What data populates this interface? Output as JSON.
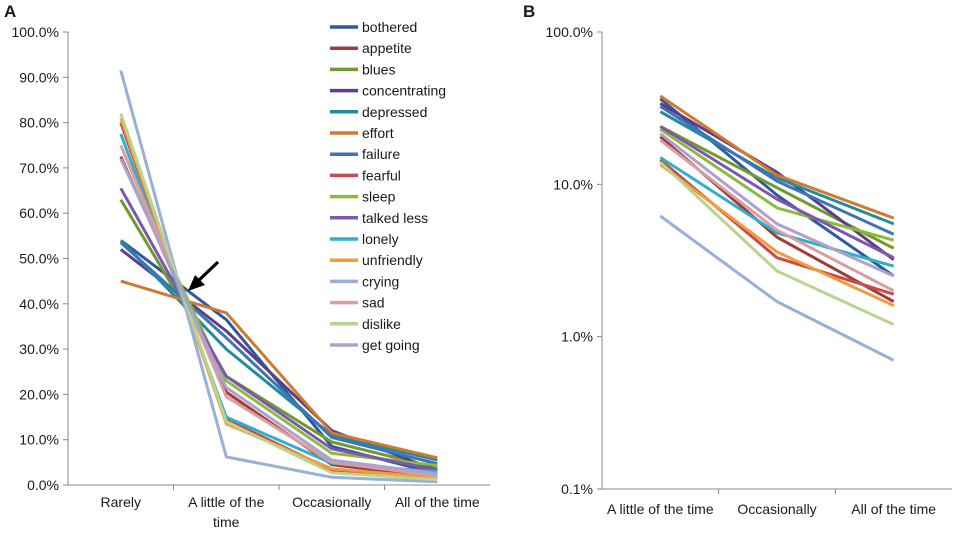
{
  "figure": {
    "panel_a_label": "A",
    "panel_b_label": "B"
  },
  "chart_data": [
    {
      "panel": "A",
      "type": "line",
      "title": "",
      "xlabel": "",
      "ylabel": "",
      "categories": [
        "Rarely",
        "A little of the time",
        "Occasionally",
        "All of the time"
      ],
      "ylim": [
        0,
        100
      ],
      "yticks": [
        "0.0%",
        "10.0%",
        "20.0%",
        "30.0%",
        "40.0%",
        "50.0%",
        "60.0%",
        "70.0%",
        "80.0%",
        "90.0%",
        "100.0%"
      ],
      "legend_position": "top-right",
      "series": [
        {
          "name": "bothered",
          "color": "#2e5a9c",
          "values": [
            54.0,
            36.5,
            8.5,
            2.5
          ]
        },
        {
          "name": "appetite",
          "color": "#9e3b3b",
          "values": [
            72.5,
            20.5,
            4.5,
            1.7
          ]
        },
        {
          "name": "blues",
          "color": "#6e9a2e",
          "values": [
            63.0,
            24.0,
            9.5,
            3.8
          ]
        },
        {
          "name": "concentrating",
          "color": "#5c3e8a",
          "values": [
            52.0,
            34.0,
            12.0,
            3.2
          ]
        },
        {
          "name": "depressed",
          "color": "#268a9e",
          "values": [
            54.0,
            30.0,
            11.0,
            5.5
          ]
        },
        {
          "name": "effort",
          "color": "#d07a2e",
          "values": [
            45.0,
            38.0,
            11.5,
            6.0
          ]
        },
        {
          "name": "failure",
          "color": "#3c74b8",
          "values": [
            53.5,
            32.5,
            10.5,
            4.7
          ]
        },
        {
          "name": "fearful",
          "color": "#c84a4a",
          "values": [
            80.0,
            14.5,
            3.3,
            1.9
          ]
        },
        {
          "name": "sleep",
          "color": "#8cba3c",
          "values": [
            72.0,
            23.0,
            7.0,
            4.3
          ]
        },
        {
          "name": "talked less",
          "color": "#7e56b0",
          "values": [
            65.5,
            24.0,
            8.0,
            3.3
          ]
        },
        {
          "name": "lonely",
          "color": "#2eb0cc",
          "values": [
            77.5,
            15.0,
            4.8,
            2.9
          ]
        },
        {
          "name": "unfriendly",
          "color": "#f39a3c",
          "values": [
            81.0,
            13.5,
            3.6,
            1.6
          ]
        },
        {
          "name": "crying",
          "color": "#98b0d8",
          "values": [
            91.5,
            6.2,
            1.7,
            0.7
          ]
        },
        {
          "name": "sad",
          "color": "#d89ea0",
          "values": [
            75.0,
            19.5,
            5.0,
            2.0
          ]
        },
        {
          "name": "dislike",
          "color": "#b8d490",
          "values": [
            82.0,
            14.0,
            2.7,
            1.2
          ]
        },
        {
          "name": "get going",
          "color": "#b0a0cc",
          "values": [
            72.0,
            21.5,
            5.5,
            2.5
          ]
        }
      ],
      "annotation": "arrow pointing to the lines' crossing point near 40% at \"A little of the time\""
    },
    {
      "panel": "B",
      "type": "line",
      "title": "",
      "xlabel": "",
      "ylabel": "",
      "yscale": "log",
      "categories": [
        "A little of the time",
        "Occasionally",
        "All of the time"
      ],
      "ylim": [
        0.1,
        100
      ],
      "yticks": [
        "0.1%",
        "1.0%",
        "10.0%",
        "100.0%"
      ],
      "series": [
        {
          "name": "bothered",
          "color": "#2e5a9c",
          "values": [
            36.5,
            8.5,
            2.5
          ]
        },
        {
          "name": "appetite",
          "color": "#9e3b3b",
          "values": [
            20.5,
            4.5,
            1.7
          ]
        },
        {
          "name": "blues",
          "color": "#6e9a2e",
          "values": [
            24.0,
            9.5,
            3.8
          ]
        },
        {
          "name": "concentrating",
          "color": "#5c3e8a",
          "values": [
            34.0,
            12.0,
            3.2
          ]
        },
        {
          "name": "depressed",
          "color": "#268a9e",
          "values": [
            30.0,
            11.0,
            5.5
          ]
        },
        {
          "name": "effort",
          "color": "#d07a2e",
          "values": [
            38.0,
            11.5,
            6.0
          ]
        },
        {
          "name": "failure",
          "color": "#3c74b8",
          "values": [
            32.5,
            10.5,
            4.7
          ]
        },
        {
          "name": "fearful",
          "color": "#c84a4a",
          "values": [
            14.5,
            3.3,
            1.9
          ]
        },
        {
          "name": "sleep",
          "color": "#8cba3c",
          "values": [
            23.0,
            7.0,
            4.3
          ]
        },
        {
          "name": "talked less",
          "color": "#7e56b0",
          "values": [
            24.0,
            8.0,
            3.3
          ]
        },
        {
          "name": "lonely",
          "color": "#2eb0cc",
          "values": [
            15.0,
            4.8,
            2.9
          ]
        },
        {
          "name": "unfriendly",
          "color": "#f39a3c",
          "values": [
            13.5,
            3.6,
            1.6
          ]
        },
        {
          "name": "crying",
          "color": "#98b0d8",
          "values": [
            6.2,
            1.7,
            0.7
          ]
        },
        {
          "name": "sad",
          "color": "#d89ea0",
          "values": [
            19.5,
            5.0,
            2.0
          ]
        },
        {
          "name": "dislike",
          "color": "#b8d490",
          "values": [
            14.0,
            2.7,
            1.2
          ]
        },
        {
          "name": "get going",
          "color": "#b0a0cc",
          "values": [
            21.5,
            5.5,
            2.5
          ]
        }
      ]
    }
  ]
}
